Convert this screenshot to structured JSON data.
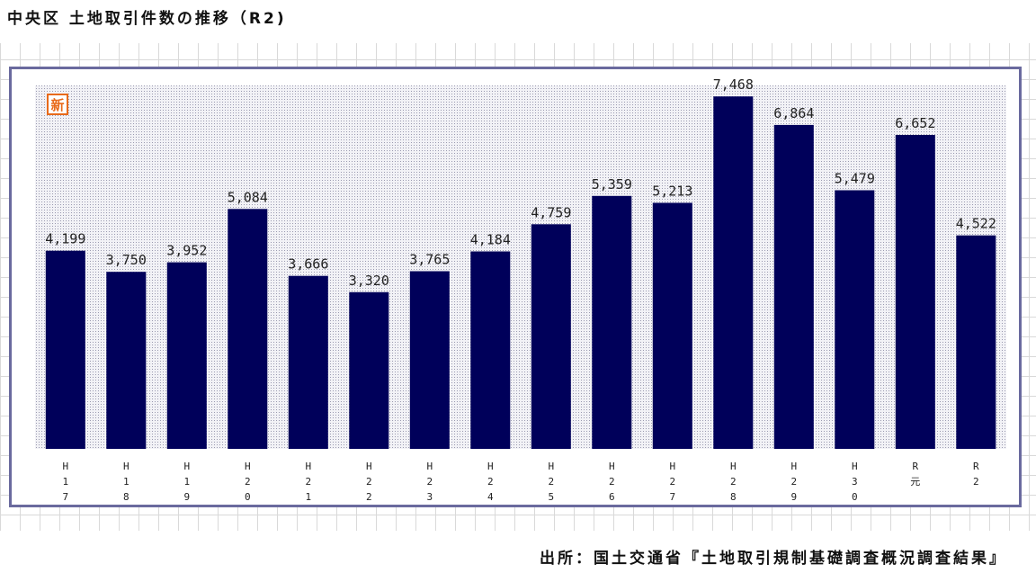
{
  "title": "中央区 土地取引件数の推移（R2)",
  "badge": "新",
  "source": "出所：国土交通省『土地取引規制基礎調査概況調査結果』",
  "colors": {
    "bar": "#00005a",
    "plot_bg": "#eaeaf0",
    "frame": "#6a6a9e",
    "badge": "#e86a1a"
  },
  "chart_data": {
    "type": "bar",
    "categories": [
      "H17",
      "H18",
      "H19",
      "H20",
      "H21",
      "H22",
      "H23",
      "H24",
      "H25",
      "H26",
      "H27",
      "H28",
      "H29",
      "H30",
      "R元",
      "R2"
    ],
    "category_chars": [
      [
        "H",
        "1",
        "7"
      ],
      [
        "H",
        "1",
        "8"
      ],
      [
        "H",
        "1",
        "9"
      ],
      [
        "H",
        "2",
        "0"
      ],
      [
        "H",
        "2",
        "1"
      ],
      [
        "H",
        "2",
        "2"
      ],
      [
        "H",
        "2",
        "3"
      ],
      [
        "H",
        "2",
        "4"
      ],
      [
        "H",
        "2",
        "5"
      ],
      [
        "H",
        "2",
        "6"
      ],
      [
        "H",
        "2",
        "7"
      ],
      [
        "H",
        "2",
        "8"
      ],
      [
        "H",
        "2",
        "9"
      ],
      [
        "H",
        "3",
        "0"
      ],
      [
        "R",
        "元"
      ],
      [
        "R",
        "2"
      ]
    ],
    "values": [
      4199,
      3750,
      3952,
      5084,
      3666,
      3320,
      3765,
      4184,
      4759,
      5359,
      5213,
      7468,
      6864,
      5479,
      6652,
      4522
    ],
    "value_labels": [
      "4,199",
      "3,750",
      "3,952",
      "5,084",
      "3,666",
      "3,320",
      "3,765",
      "4,184",
      "4,759",
      "5,359",
      "5,213",
      "7,468",
      "6,864",
      "5,479",
      "6,652",
      "4,522"
    ],
    "ylim": [
      0,
      7700
    ],
    "title": "",
    "xlabel": "",
    "ylabel": ""
  }
}
